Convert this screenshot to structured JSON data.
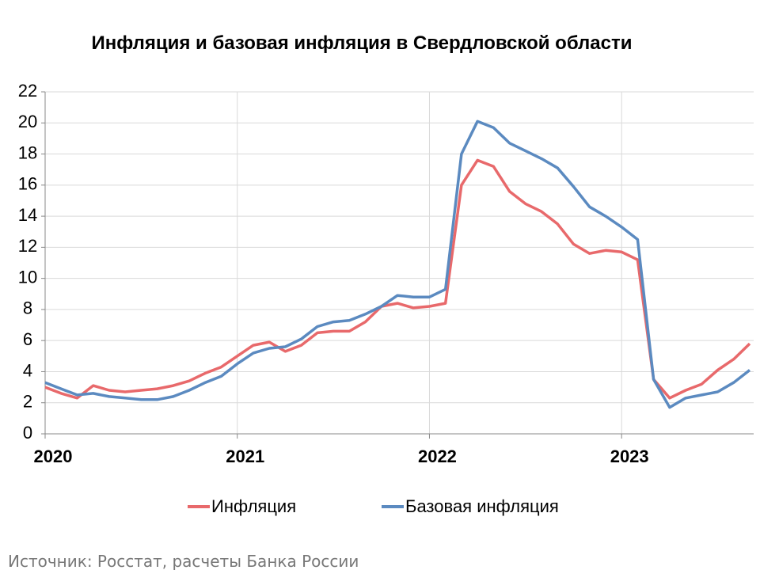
{
  "chart_data": {
    "type": "line",
    "title": "Инфляция и базовая инфляция в Свердловской области",
    "categories": [
      "2020",
      null,
      null,
      null,
      null,
      null,
      null,
      null,
      null,
      null,
      null,
      null,
      "2021",
      null,
      null,
      null,
      null,
      null,
      null,
      null,
      null,
      null,
      null,
      null,
      "2022",
      null,
      null,
      null,
      null,
      null,
      null,
      null,
      null,
      null,
      null,
      null,
      "2023",
      null,
      null,
      null,
      null,
      null,
      null,
      null,
      null
    ],
    "series": [
      {
        "name": "Инфляция",
        "color": "#e8696b",
        "values": [
          3.0,
          2.6,
          2.3,
          3.1,
          2.8,
          2.7,
          2.8,
          2.9,
          3.1,
          3.4,
          3.9,
          4.3,
          5.0,
          5.7,
          5.9,
          5.3,
          5.7,
          6.5,
          6.6,
          6.6,
          7.2,
          8.2,
          8.4,
          8.1,
          8.2,
          8.4,
          16.0,
          17.6,
          17.2,
          15.6,
          14.8,
          14.3,
          13.5,
          12.2,
          11.6,
          11.8,
          11.7,
          11.2,
          3.5,
          2.3,
          2.8,
          3.2,
          4.1,
          4.8,
          5.8
        ]
      },
      {
        "name": "Базовая инфляция",
        "color": "#5b8ac0",
        "values": [
          3.3,
          2.9,
          2.5,
          2.6,
          2.4,
          2.3,
          2.2,
          2.2,
          2.4,
          2.8,
          3.3,
          3.7,
          4.5,
          5.2,
          5.5,
          5.6,
          6.1,
          6.9,
          7.2,
          7.3,
          7.7,
          8.2,
          8.9,
          8.8,
          8.8,
          9.3,
          18.0,
          20.1,
          19.7,
          18.7,
          18.2,
          17.7,
          17.1,
          15.9,
          14.6,
          14.0,
          13.3,
          12.5,
          3.5,
          1.7,
          2.3,
          2.5,
          2.7,
          3.3,
          4.1
        ]
      }
    ],
    "ylim": [
      0,
      22
    ],
    "yticks": [
      0,
      2,
      4,
      6,
      8,
      10,
      12,
      14,
      16,
      18,
      20,
      22
    ],
    "grid": true,
    "legend": "bottom",
    "source": "Источник: Росстат, расчеты Банка России"
  }
}
